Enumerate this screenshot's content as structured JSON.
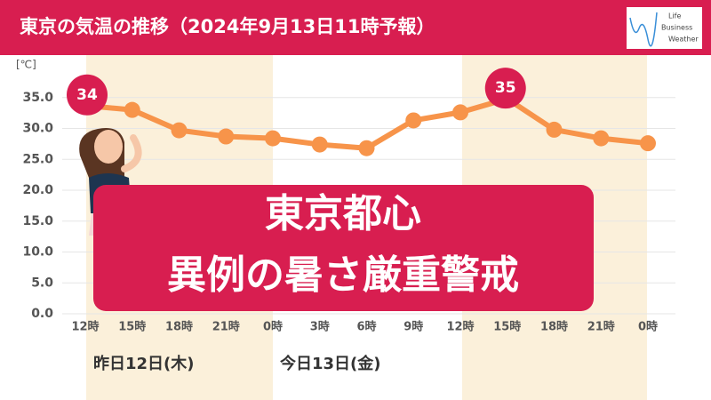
{
  "chart_data": {
    "type": "line",
    "title": "東京の気温の推移（2024年9月13日11時予報）",
    "y_label": "[℃]",
    "categories": [
      "12時",
      "15時",
      "18時",
      "21時",
      "0時",
      "3時",
      "6時",
      "9時",
      "12時",
      "15時",
      "18時",
      "21時",
      "0時"
    ],
    "values": [
      33.7,
      33.0,
      29.7,
      28.7,
      28.4,
      27.4,
      26.8,
      31.3,
      32.6,
      34.8,
      29.8,
      28.4,
      27.6
    ],
    "value_labels": [
      "34",
      null,
      null,
      null,
      null,
      null,
      null,
      null,
      null,
      "35",
      null,
      null,
      null
    ],
    "color": "#f7944a",
    "ylim": [
      0,
      40
    ],
    "yticks": [
      {
        "value": 0,
        "label": "0.0"
      },
      {
        "value": 5,
        "label": "5.0"
      },
      {
        "value": 10,
        "label": "10.0"
      },
      {
        "value": 15,
        "label": "15.0"
      },
      {
        "value": 20,
        "label": "20.0"
      },
      {
        "value": 25,
        "label": "25.0"
      },
      {
        "value": 30,
        "label": "30.0"
      },
      {
        "value": 35,
        "label": "35.0"
      }
    ],
    "grid": true,
    "day_labels": [
      "昨日12日(木)",
      "今日13日(金)"
    ],
    "annotations": [
      "東京都心",
      "異例の暑さ厳重警戒"
    ]
  },
  "logo": {
    "lines": [
      "Life",
      "Business",
      "Weather"
    ]
  }
}
